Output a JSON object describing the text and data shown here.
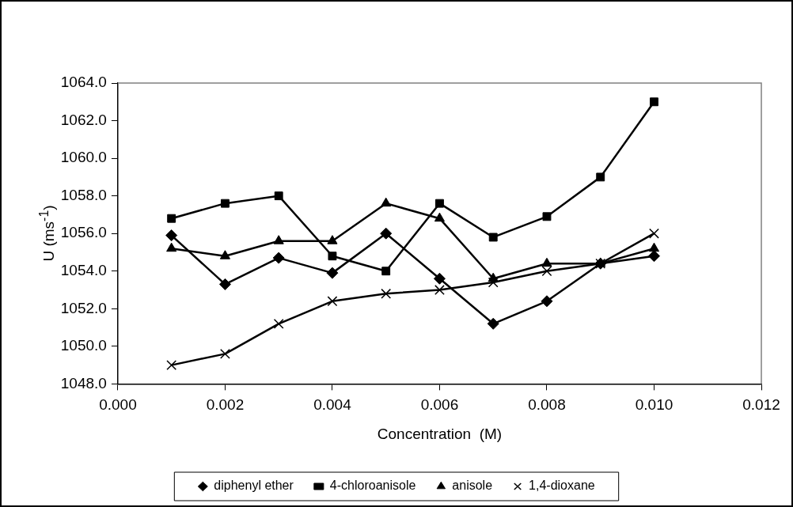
{
  "chart_data": {
    "type": "line",
    "xlabel": "Concentration  (M)",
    "ylabel": "U (ms$^{-1}$)",
    "x": [
      0.001,
      0.002,
      0.003,
      0.004,
      0.005,
      0.006,
      0.007,
      0.008,
      0.009,
      0.01
    ],
    "series": [
      {
        "name": "diphenyl ether",
        "color": "#000000",
        "marker": "diamond",
        "values": [
          1055.9,
          1053.3,
          1054.7,
          1053.9,
          1056.0,
          1053.6,
          1051.2,
          1052.4,
          1054.4,
          1054.8
        ]
      },
      {
        "name": "4-chloroanisole",
        "color": "#000000",
        "marker": "square",
        "values": [
          1056.8,
          1057.6,
          1058.0,
          1054.8,
          1054.0,
          1057.6,
          1055.8,
          1056.9,
          1059.0,
          1063.0
        ]
      },
      {
        "name": "anisole",
        "color": "#000000",
        "marker": "triangle",
        "values": [
          1055.2,
          1054.8,
          1055.6,
          1055.6,
          1057.6,
          1056.8,
          1053.6,
          1054.4,
          1054.4,
          1055.2
        ]
      },
      {
        "name": "1,4-dioxane",
        "color": "#000000",
        "marker": "cross",
        "values": [
          1049.0,
          1049.6,
          1051.2,
          1052.4,
          1052.8,
          1053.0,
          1053.4,
          1054.0,
          1054.4,
          1056.0
        ]
      }
    ],
    "xlim": [
      0,
      0.012
    ],
    "xticks": [
      {
        "value": 0,
        "label": "0.000"
      },
      {
        "value": 0.002,
        "label": "0.002"
      },
      {
        "value": 0.004,
        "label": "0.004"
      },
      {
        "value": 0.006,
        "label": "0.006"
      },
      {
        "value": 0.008,
        "label": "0.008"
      },
      {
        "value": 0.01,
        "label": "0.010"
      },
      {
        "value": 0.012,
        "label": "0.012"
      }
    ],
    "ylim": [
      1048,
      1064
    ],
    "yticks": [
      {
        "value": 1048,
        "label": "1048.0"
      },
      {
        "value": 1050,
        "label": "1050.0"
      },
      {
        "value": 1052,
        "label": "1052.0"
      },
      {
        "value": 1054,
        "label": "1054.0"
      },
      {
        "value": 1056,
        "label": "1056.0"
      },
      {
        "value": 1058,
        "label": "1058.0"
      },
      {
        "value": 1060,
        "label": "1060.0"
      },
      {
        "value": 1062,
        "label": "1062.0"
      },
      {
        "value": 1064,
        "label": "1064.0"
      }
    ],
    "grid": false,
    "legend": "bottom",
    "line_style": "solid"
  }
}
